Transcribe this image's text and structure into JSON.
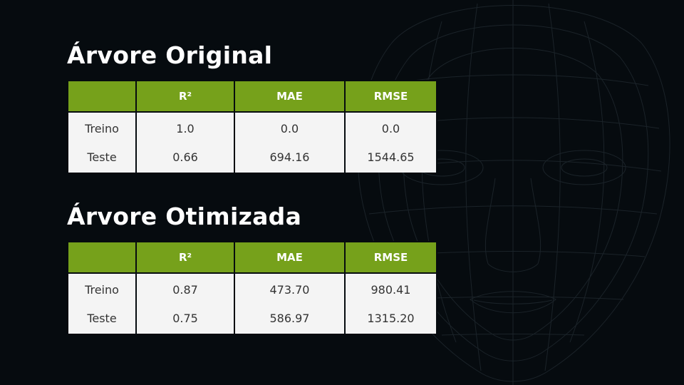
{
  "slide": {
    "tables": [
      {
        "title": "Árvore Original",
        "headers": [
          "",
          "R²",
          "MAE",
          "RMSE"
        ],
        "rows": [
          [
            "Treino",
            "1.0",
            "0.0",
            "0.0"
          ],
          [
            "Teste",
            "0.66",
            "694.16",
            "1544.65"
          ]
        ]
      },
      {
        "title": "Árvore Otimizada",
        "headers": [
          "",
          "R²",
          "MAE",
          "RMSE"
        ],
        "rows": [
          [
            "Treino",
            "0.87",
            "473.70",
            "980.41"
          ],
          [
            "Teste",
            "0.75",
            "586.97",
            "1315.20"
          ]
        ]
      }
    ]
  },
  "colors": {
    "background": "#060b0f",
    "header_green": "#76a11b",
    "cell_bg": "#f4f4f4",
    "title_text": "#ffffff"
  },
  "icons": [
    "wireframe-face-illustration"
  ]
}
